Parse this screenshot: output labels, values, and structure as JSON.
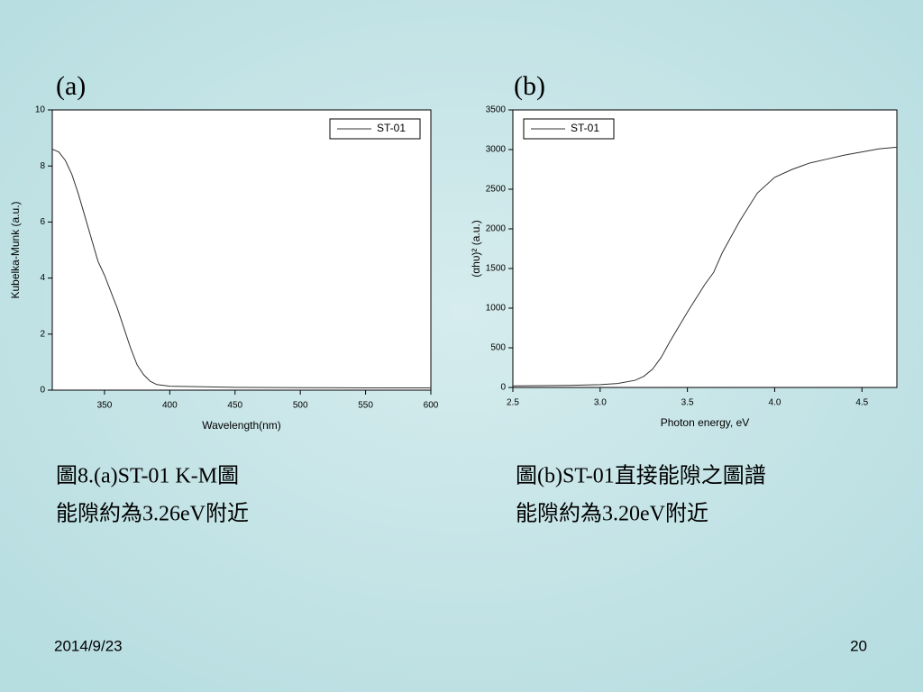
{
  "chart_data": [
    {
      "type": "line",
      "title": "(a)",
      "x_label": "Wavelength(nm)",
      "y_label": "Kubelka-Munk (a.u.)",
      "x": [
        310,
        315,
        320,
        325,
        330,
        335,
        340,
        345,
        350,
        355,
        360,
        365,
        370,
        375,
        380,
        385,
        390,
        400,
        450,
        500,
        550,
        600
      ],
      "series": [
        {
          "name": "ST-01",
          "color": "#333333",
          "values": [
            8.6,
            8.5,
            8.2,
            7.7,
            7.0,
            6.2,
            5.4,
            4.6,
            4.1,
            3.5,
            2.9,
            2.2,
            1.5,
            0.9,
            0.55,
            0.32,
            0.2,
            0.14,
            0.1,
            0.09,
            0.08,
            0.08
          ]
        }
      ],
      "xlim": [
        310,
        600
      ],
      "xticks": [
        350,
        400,
        450,
        500,
        550,
        600
      ],
      "ylim": [
        0,
        10
      ],
      "yticks": [
        0,
        2,
        4,
        6,
        8,
        10
      ],
      "legend": "top-right"
    },
    {
      "type": "line",
      "title": "(b)",
      "x_label": "Photon energy, eV",
      "y_label": "(αhυ)² (a.u.)",
      "x": [
        2.5,
        2.8,
        3.0,
        3.1,
        3.2,
        3.25,
        3.3,
        3.35,
        3.4,
        3.5,
        3.6,
        3.65,
        3.7,
        3.8,
        3.9,
        4.0,
        4.1,
        4.2,
        4.3,
        4.4,
        4.5,
        4.6,
        4.7
      ],
      "series": [
        {
          "name": "ST-01",
          "color": "#333333",
          "values": [
            20,
            25,
            35,
            50,
            90,
            140,
            230,
            380,
            580,
            950,
            1300,
            1450,
            1700,
            2100,
            2450,
            2650,
            2750,
            2830,
            2880,
            2930,
            2970,
            3010,
            3030
          ]
        }
      ],
      "xlim": [
        2.5,
        4.7
      ],
      "xticks": [
        2.5,
        {
          "value": 3,
          "label": "3.0"
        },
        3.5,
        {
          "value": 4,
          "label": "4.0"
        },
        4.5
      ],
      "ylim": [
        0,
        3500
      ],
      "yticks": [
        0,
        500,
        1000,
        1500,
        2000,
        2500,
        3000,
        3500
      ],
      "legend": "top-left"
    }
  ],
  "captions": [
    [
      "圖8.(a)ST-01 K-M圖",
      "能隙約為3.26eV附近"
    ],
    [
      "圖(b)ST-01直接能隙之圖譜",
      "能隙約為3.20eV附近"
    ]
  ],
  "footer": {
    "date": "2014/9/23",
    "page": "20"
  }
}
